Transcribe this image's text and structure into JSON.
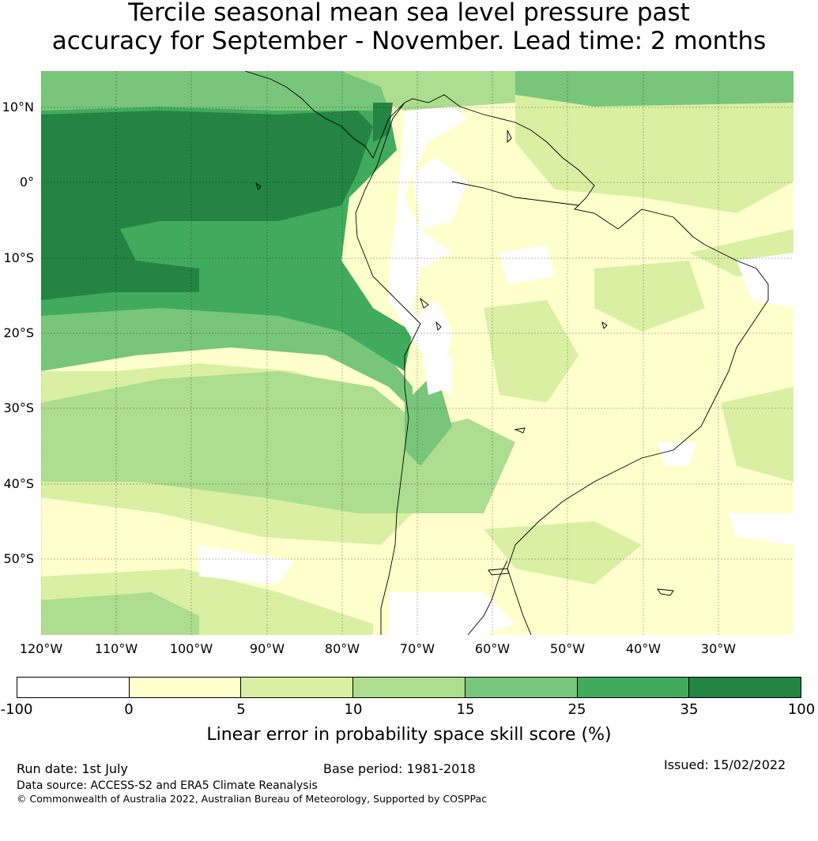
{
  "title": {
    "line1": "Tercile seasonal mean sea level pressure past",
    "line2": "accuracy for September - November. Lead time: 2 months"
  },
  "map": {
    "region": "South America and eastern Pacific",
    "lat_labels": [
      "10°N",
      "0°",
      "10°S",
      "20°S",
      "30°S",
      "40°S",
      "50°S"
    ],
    "lon_labels": [
      "120°W",
      "110°W",
      "100°W",
      "90°W",
      "80°W",
      "70°W",
      "60°W",
      "50°W",
      "40°W",
      "30°W"
    ],
    "gridlines": true,
    "coastline_color": "#000000"
  },
  "colorbar": {
    "label": "Linear error in probability space skill score (%)",
    "ticks": [
      "-100",
      "0",
      "5",
      "10",
      "15",
      "25",
      "35",
      "100"
    ],
    "bins": [
      {
        "from": -100,
        "to": 0,
        "color": "#ffffff"
      },
      {
        "from": 0,
        "to": 5,
        "color": "#ffffcc"
      },
      {
        "from": 5,
        "to": 10,
        "color": "#d9f0a3"
      },
      {
        "from": 10,
        "to": 15,
        "color": "#addd8e"
      },
      {
        "from": 15,
        "to": 25,
        "color": "#78c679"
      },
      {
        "from": 25,
        "to": 35,
        "color": "#41ab5d"
      },
      {
        "from": 35,
        "to": 100,
        "color": "#238443"
      }
    ]
  },
  "footer": {
    "run_date": "Run date: 1st July",
    "base_period": "Base period: 1981-2018",
    "issued": "Issued: 15/02/2022",
    "data_source": "Data source: ACCESS-S2 and ERA5 Climate Reanalysis",
    "copyright": "© Commonwealth of Australia 2022, Australian Bureau of Meteorology, Supported by COSPPac"
  }
}
